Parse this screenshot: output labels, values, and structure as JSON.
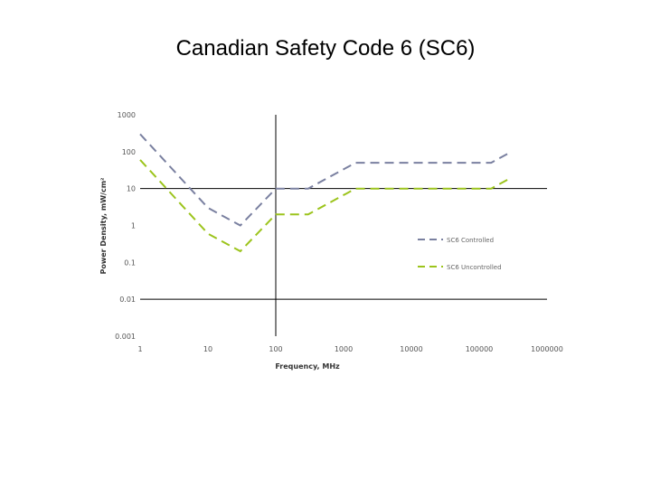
{
  "slide": {
    "title": "Canadian Safety Code 6 (SC6)"
  },
  "colors": {
    "controlled": "#7a80a0",
    "uncontrolled": "#9cc41c",
    "grid": "#000000",
    "text": "#555555"
  },
  "chart_data": {
    "type": "line",
    "title": "Canadian Safety Code 6 (SC6)",
    "xlabel": "Frequency, MHz",
    "ylabel": "Power Density, mW/cm²",
    "x_scale": "log",
    "y_scale": "log",
    "xlim": [
      1,
      1000000
    ],
    "ylim": [
      0.001,
      1000
    ],
    "x_ticks": [
      1,
      10,
      100,
      1000,
      10000,
      100000,
      1000000
    ],
    "x_tick_labels": [
      "1",
      "10",
      "100",
      "1000",
      "10000",
      "100000",
      "1000000"
    ],
    "y_ticks": [
      0.001,
      0.01,
      0.1,
      1,
      10,
      100,
      1000
    ],
    "y_tick_labels": [
      "0.001",
      "0.01",
      "0.1",
      "1",
      "10",
      "100",
      "1000"
    ],
    "legend_position": "right",
    "series": [
      {
        "name": "SC6 Controlled",
        "style": "dashed",
        "x": [
          1,
          10,
          30,
          100,
          300,
          1500,
          150000,
          300000
        ],
        "y": [
          300,
          3,
          1,
          10,
          10,
          50,
          50,
          100
        ]
      },
      {
        "name": "SC6 Uncontrolled",
        "style": "dashed",
        "x": [
          1,
          10,
          30,
          100,
          300,
          1500,
          150000,
          300000
        ],
        "y": [
          60,
          0.6,
          0.2,
          2,
          2,
          10,
          10,
          20
        ]
      }
    ]
  }
}
